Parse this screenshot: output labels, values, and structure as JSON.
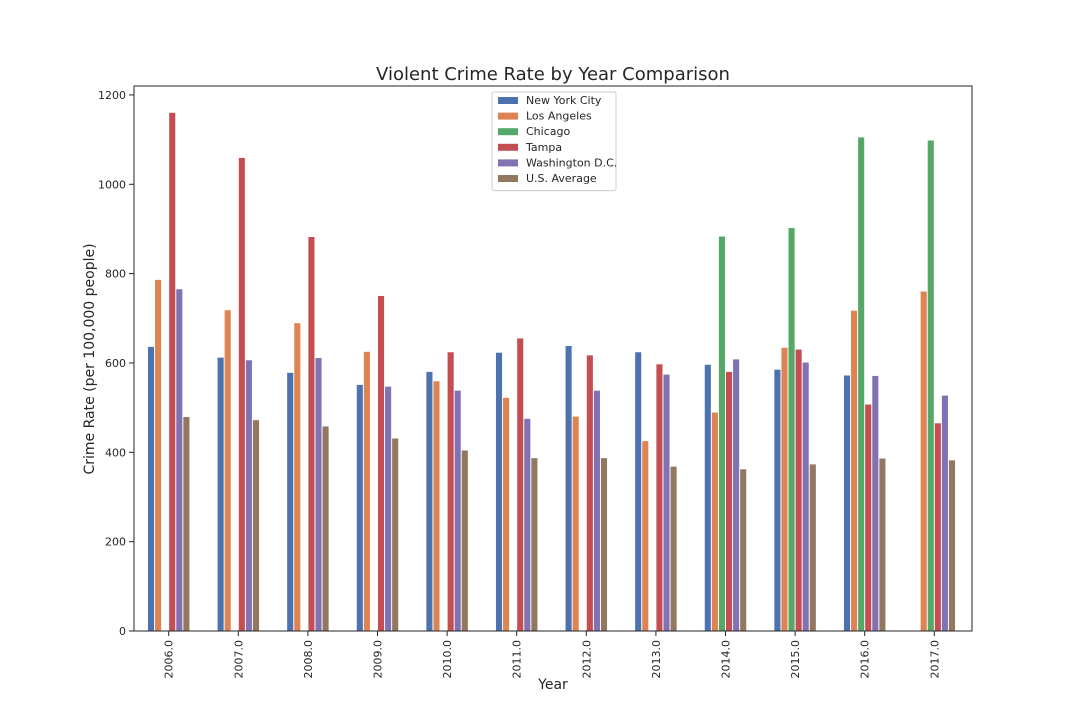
{
  "chart_data": {
    "type": "bar",
    "title": "Violent Crime Rate by Year Comparison",
    "xlabel": "Year",
    "ylabel": "Crime Rate (per 100,000 people)",
    "ylim": [
      0,
      1220
    ],
    "yticks": [
      0,
      200,
      400,
      600,
      800,
      1000,
      1200
    ],
    "legend_position": "top-center",
    "categories": [
      "2006.0",
      "2007.0",
      "2008.0",
      "2009.0",
      "2010.0",
      "2011.0",
      "2012.0",
      "2013.0",
      "2014.0",
      "2015.0",
      "2016.0",
      "2017.0"
    ],
    "series": [
      {
        "name": "New York City",
        "color": "#4c72b0",
        "values": [
          636,
          612,
          578,
          551,
          580,
          623,
          638,
          624,
          596,
          585,
          572,
          null
        ]
      },
      {
        "name": "Los Angeles",
        "color": "#dd8452",
        "values": [
          786,
          718,
          689,
          625,
          559,
          522,
          480,
          425,
          489,
          634,
          717,
          760
        ]
      },
      {
        "name": "Chicago",
        "color": "#55a868",
        "values": [
          null,
          null,
          null,
          null,
          null,
          null,
          null,
          null,
          883,
          902,
          1105,
          1098
        ]
      },
      {
        "name": "Tampa",
        "color": "#c44e52",
        "values": [
          1160,
          1059,
          882,
          750,
          624,
          655,
          617,
          597,
          580,
          630,
          507,
          465
        ]
      },
      {
        "name": "Washington D.C.",
        "color": "#8172b3",
        "values": [
          765,
          606,
          611,
          547,
          538,
          475,
          538,
          574,
          608,
          601,
          571,
          527
        ]
      },
      {
        "name": "U.S. Average",
        "color": "#937860",
        "values": [
          479,
          472,
          458,
          431,
          404,
          387,
          387,
          368,
          362,
          373,
          386,
          382
        ]
      }
    ]
  }
}
